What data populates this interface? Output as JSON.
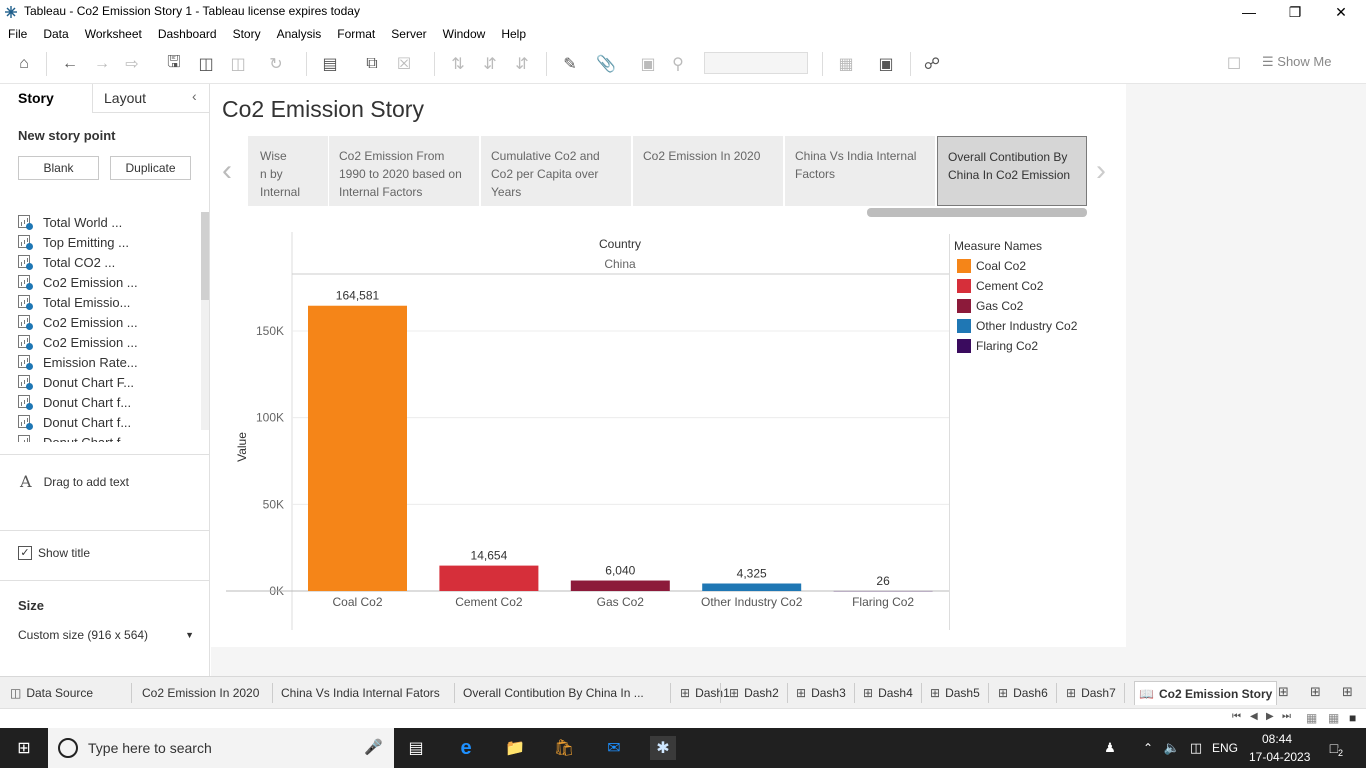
{
  "window": {
    "title": "Tableau - Co2 Emission Story 1 - Tableau license expires today",
    "controls": [
      "minimize",
      "restore",
      "close"
    ]
  },
  "menu": [
    "File",
    "Data",
    "Worksheet",
    "Dashboard",
    "Story",
    "Analysis",
    "Format",
    "Server",
    "Window",
    "Help"
  ],
  "toolbar": {
    "show_me": "Show Me"
  },
  "left_panel": {
    "tab_story": "Story",
    "tab_layout": "Layout",
    "new_story_point": "New story point",
    "btn_blank": "Blank",
    "btn_duplicate": "Duplicate",
    "sheets": [
      "Total World ...",
      "Top Emitting ...",
      "Total CO2 ...",
      "Co2 Emission ...",
      "Total Emissio...",
      "Co2 Emission ...",
      "Co2 Emission ...",
      "Emission Rate...",
      "Donut Chart F...",
      "Donut Chart f...",
      "Donut Chart f...",
      "Donut Chart f..."
    ],
    "drag_text": "Drag to add text",
    "show_title": "Show title",
    "size_heading": "Size",
    "size_value": "Custom size (916 x 564)"
  },
  "story": {
    "title": "Co2 Emission Story",
    "points": [
      "Wise\nn by Internal",
      "Co2 Emission From 1990 to 2020 based on Internal Factors",
      "Cumulative Co2 and Co2 per Capita over Years",
      "Co2 Emission In 2020",
      "China Vs India Internal Factors",
      "Overall Contibution By China In Co2 Emission"
    ],
    "active_point": 5
  },
  "chart_data": {
    "type": "bar",
    "header_title": "Country",
    "header_value": "China",
    "ylabel": "Value",
    "ylim": [
      0,
      180000
    ],
    "yticks": [
      0,
      50000,
      100000,
      150000
    ],
    "ytick_labels": [
      "0K",
      "50K",
      "100K",
      "150K"
    ],
    "categories": [
      "Coal Co2",
      "Cement Co2",
      "Gas Co2",
      "Other Industry Co2",
      "Flaring Co2"
    ],
    "values": [
      164581,
      14654,
      6040,
      4325,
      26
    ],
    "value_labels": [
      "164,581",
      "14,654",
      "6,040",
      "4,325",
      "26"
    ],
    "colors": [
      "#f58518",
      "#d62f3a",
      "#8c1a3a",
      "#1f77b4",
      "#3a0b5e"
    ],
    "legend_title": "Measure Names"
  },
  "sheet_tabs": [
    "Data Source",
    "Co2 Emission In 2020",
    "China Vs India Internal Fators",
    "Overall Contibution By China In ...",
    "Dash1",
    "Dash2",
    "Dash3",
    "Dash4",
    "Dash5",
    "Dash6",
    "Dash7",
    "Co2 Emission Story"
  ],
  "taskbar": {
    "search_placeholder": "Type here to search",
    "language": "ENG",
    "time": "08:44",
    "date": "17-04-2023",
    "notifications": "2"
  }
}
